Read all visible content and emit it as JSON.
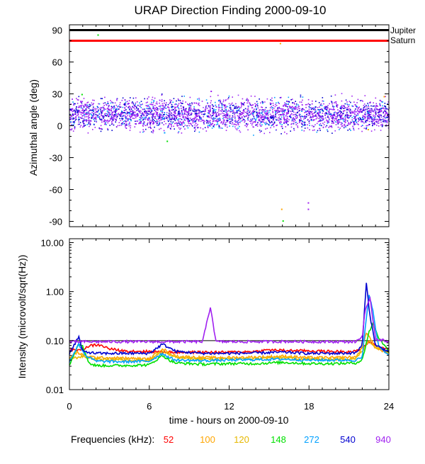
{
  "chart_data": {
    "title": "URAP Direction Finding  2000-09-10",
    "xlabel": "time - hours on 2000-09-10",
    "x_ticks": [
      0,
      6,
      12,
      18,
      24
    ],
    "x_tick_labels": [
      "0",
      "6",
      "12",
      "18",
      "24"
    ],
    "xlim": [
      0,
      24
    ],
    "top_panel": {
      "type": "scatter",
      "ylabel": "Azimuthal angle (deg)",
      "ylim": [
        -95,
        95
      ],
      "y_ticks": [
        90,
        60,
        30,
        0,
        -30,
        -60,
        -90
      ],
      "y_tick_labels": [
        "90",
        "60",
        "30",
        "0",
        "-30",
        "-60",
        "-90"
      ],
      "reference_lines": [
        {
          "name": "Jupiter",
          "value": 90,
          "color": "#000000"
        },
        {
          "name": "Saturn",
          "value": 80,
          "color": "#ff0000"
        }
      ],
      "band": {
        "series": "940",
        "center_deg": 11,
        "spread_deg": 7
      },
      "outliers": [
        {
          "x": 0.9,
          "y": 30,
          "series": "148"
        },
        {
          "x": 2.1,
          "y": 86,
          "series": "148"
        },
        {
          "x": 7.1,
          "y": -6,
          "series": "272"
        },
        {
          "x": 7.3,
          "y": -14,
          "series": "148"
        },
        {
          "x": 10.6,
          "y": 33,
          "series": "940"
        },
        {
          "x": 15.8,
          "y": 78,
          "series": "100"
        },
        {
          "x": 15.9,
          "y": -78,
          "series": "100"
        },
        {
          "x": 16.0,
          "y": -89,
          "series": "148"
        },
        {
          "x": 17.9,
          "y": -72,
          "series": "940"
        },
        {
          "x": 17.9,
          "y": -78,
          "series": "940"
        },
        {
          "x": 11.2,
          "y": 0,
          "series": "540"
        },
        {
          "x": 22.4,
          "y": -3,
          "series": "120"
        },
        {
          "x": 23.6,
          "y": 28,
          "series": "100"
        }
      ]
    },
    "bottom_panel": {
      "type": "line",
      "ylabel": "Intensity (microvolt/sqrt(Hz))",
      "yscale": "log",
      "ylim": [
        0.01,
        12
      ],
      "y_ticks": [
        10,
        1,
        0.1,
        0.01
      ],
      "y_tick_labels": [
        "10.00",
        "1.00",
        "0.10",
        "0.01"
      ],
      "series": [
        {
          "name": "52",
          "color": "#ff0000",
          "x": [
            0,
            0.5,
            1.0,
            1.5,
            2.0,
            2.5,
            3.0,
            4,
            6,
            8,
            10,
            12,
            14,
            15,
            16,
            18,
            20,
            21.5,
            22,
            22.5,
            23,
            24
          ],
          "values": [
            0.065,
            0.064,
            0.068,
            0.078,
            0.082,
            0.078,
            0.068,
            0.062,
            0.06,
            0.058,
            0.058,
            0.058,
            0.06,
            0.065,
            0.063,
            0.062,
            0.06,
            0.06,
            0.07,
            0.095,
            0.08,
            0.065
          ]
        },
        {
          "name": "100",
          "color": "#ffa500",
          "x": [
            0,
            0.6,
            1.0,
            2,
            4,
            6,
            7.0,
            7.5,
            8,
            10,
            12,
            14,
            16,
            18,
            20,
            21.5,
            22,
            22.3,
            22.6,
            23,
            24
          ],
          "values": [
            0.045,
            0.058,
            0.05,
            0.045,
            0.044,
            0.042,
            0.07,
            0.055,
            0.048,
            0.045,
            0.045,
            0.046,
            0.048,
            0.045,
            0.045,
            0.046,
            0.07,
            0.15,
            0.11,
            0.07,
            0.055
          ]
        },
        {
          "name": "120",
          "color": "#e6b800",
          "x": [
            0,
            1,
            2,
            4,
            6,
            7.0,
            8,
            10,
            12,
            14,
            16,
            18,
            20,
            21.5,
            22,
            22.5,
            23,
            24
          ],
          "values": [
            0.042,
            0.048,
            0.042,
            0.041,
            0.04,
            0.06,
            0.045,
            0.042,
            0.042,
            0.043,
            0.045,
            0.042,
            0.042,
            0.043,
            0.06,
            0.1,
            0.075,
            0.06
          ]
        },
        {
          "name": "148",
          "color": "#00e000",
          "x": [
            0,
            0.7,
            1.0,
            1.5,
            2,
            4,
            6,
            7.0,
            7.5,
            8,
            10,
            12,
            14,
            16,
            18,
            20,
            21.5,
            22.0,
            22.5,
            22.8,
            23.2,
            24
          ],
          "values": [
            0.032,
            0.09,
            0.075,
            0.034,
            0.031,
            0.031,
            0.032,
            0.05,
            0.04,
            0.035,
            0.033,
            0.034,
            0.034,
            0.036,
            0.034,
            0.034,
            0.035,
            0.04,
            0.15,
            0.22,
            0.12,
            0.06
          ]
        },
        {
          "name": "272",
          "color": "#00a0ff",
          "x": [
            0,
            0.7,
            1.2,
            2,
            4,
            6,
            7.0,
            7.5,
            8,
            10,
            12,
            14,
            16,
            18,
            20,
            21.5,
            22.0,
            22.5,
            22.8,
            23.2,
            24
          ],
          "values": [
            0.038,
            0.085,
            0.05,
            0.038,
            0.037,
            0.038,
            0.055,
            0.045,
            0.04,
            0.039,
            0.04,
            0.041,
            0.042,
            0.04,
            0.04,
            0.04,
            0.045,
            0.9,
            0.4,
            0.08,
            0.05
          ]
        },
        {
          "name": "540",
          "color": "#0000d0",
          "x": [
            0,
            0.7,
            1.0,
            2,
            4,
            6,
            7.0,
            8,
            10,
            12,
            14,
            16,
            18,
            20,
            21.5,
            22.0,
            22.3,
            22.6,
            23,
            24
          ],
          "values": [
            0.055,
            0.12,
            0.06,
            0.055,
            0.055,
            0.055,
            0.085,
            0.06,
            0.055,
            0.055,
            0.056,
            0.058,
            0.055,
            0.055,
            0.056,
            0.08,
            1.5,
            0.3,
            0.08,
            0.06
          ]
        },
        {
          "name": "940",
          "color": "#a020f0",
          "x": [
            0,
            2,
            4,
            6,
            8,
            10,
            10.6,
            11,
            12,
            14,
            16,
            18,
            20,
            21.5,
            22.0,
            22.2,
            22.6,
            23,
            24
          ],
          "values": [
            0.095,
            0.095,
            0.095,
            0.095,
            0.095,
            0.095,
            0.5,
            0.095,
            0.095,
            0.095,
            0.096,
            0.095,
            0.095,
            0.095,
            0.12,
            0.4,
            0.7,
            0.11,
            0.095
          ]
        }
      ]
    },
    "legend": {
      "label": "Frequencies (kHz):",
      "items": [
        {
          "name": "52",
          "color": "#ff0000"
        },
        {
          "name": "100",
          "color": "#ffa500"
        },
        {
          "name": "120",
          "color": "#e6b800"
        },
        {
          "name": "148",
          "color": "#00e000"
        },
        {
          "name": "272",
          "color": "#00a0ff"
        },
        {
          "name": "540",
          "color": "#0000d0"
        },
        {
          "name": "940",
          "color": "#a020f0"
        }
      ]
    }
  }
}
